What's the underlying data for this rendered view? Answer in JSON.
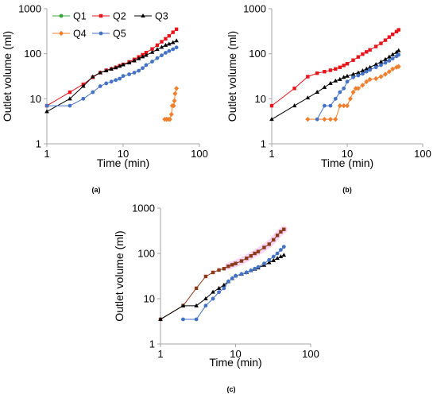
{
  "colors": {
    "Q1": "#3aa53a",
    "Q2": "#e8141b",
    "Q3": "#000000",
    "Q4": "#f07f2e",
    "Q5": "#4472c4",
    "axis": "#a6a6a6"
  },
  "chart_data": [
    {
      "type": "line",
      "panel_label": "(a)",
      "xlabel": "Time (min)",
      "ylabel": "Outlet volume (ml)",
      "xscale": "log",
      "yscale": "log",
      "xlim": [
        1,
        100
      ],
      "ylim": [
        1,
        1000
      ],
      "x_ticks": [
        "1",
        "10",
        "100"
      ],
      "y_ticks": [
        "1",
        "10",
        "100",
        "1000"
      ],
      "legend": "top-left",
      "legend_entries": [
        "Q1",
        "Q2",
        "Q3",
        "Q4",
        "Q5"
      ],
      "series": [
        {
          "name": "Q1",
          "marker": "circle",
          "points": []
        },
        {
          "name": "Q2",
          "marker": "square",
          "points": [
            [
              1,
              7
            ],
            [
              2,
              14
            ],
            [
              3,
              21
            ],
            [
              4,
              30
            ],
            [
              5,
              38
            ],
            [
              6,
              43
            ],
            [
              7,
              46
            ],
            [
              8,
              50
            ],
            [
              9,
              54
            ],
            [
              10,
              58
            ],
            [
              12,
              66
            ],
            [
              14,
              75
            ],
            [
              16,
              85
            ],
            [
              18,
              95
            ],
            [
              20,
              106
            ],
            [
              24,
              128
            ],
            [
              28,
              155
            ],
            [
              32,
              185
            ],
            [
              36,
              215
            ],
            [
              40,
              250
            ],
            [
              45,
              300
            ],
            [
              50,
              350
            ]
          ]
        },
        {
          "name": "Q3",
          "marker": "triangle",
          "points": [
            [
              1,
              5.2
            ],
            [
              2,
              10
            ],
            [
              3,
              19
            ],
            [
              4,
              31
            ],
            [
              5,
              38
            ],
            [
              6,
              42
            ],
            [
              7,
              46
            ],
            [
              8,
              49
            ],
            [
              9,
              53
            ],
            [
              10,
              57
            ],
            [
              12,
              63
            ],
            [
              14,
              70
            ],
            [
              16,
              78
            ],
            [
              18,
              86
            ],
            [
              20,
              93
            ],
            [
              24,
              108
            ],
            [
              28,
              125
            ],
            [
              32,
              140
            ],
            [
              36,
              155
            ],
            [
              40,
              165
            ],
            [
              45,
              178
            ],
            [
              50,
              195
            ]
          ]
        },
        {
          "name": "Q4",
          "marker": "diamond",
          "points": [
            [
              35,
              3.5
            ],
            [
              37,
              3.5
            ],
            [
              39,
              3.5
            ],
            [
              41,
              3.5
            ],
            [
              43,
              4.5
            ],
            [
              44,
              7
            ],
            [
              46,
              7
            ],
            [
              47,
              9
            ],
            [
              48,
              13
            ],
            [
              50,
              17
            ]
          ]
        },
        {
          "name": "Q5",
          "marker": "circle",
          "points": [
            [
              1,
              7
            ],
            [
              2,
              7
            ],
            [
              3,
              10
            ],
            [
              4,
              14
            ],
            [
              5,
              19
            ],
            [
              6,
              22
            ],
            [
              7,
              24
            ],
            [
              8,
              26
            ],
            [
              9,
              28
            ],
            [
              10,
              32
            ],
            [
              12,
              35
            ],
            [
              14,
              38
            ],
            [
              16,
              42
            ],
            [
              18,
              48
            ],
            [
              20,
              56
            ],
            [
              24,
              67
            ],
            [
              28,
              80
            ],
            [
              32,
              92
            ],
            [
              36,
              105
            ],
            [
              40,
              115
            ],
            [
              45,
              126
            ],
            [
              50,
              138
            ]
          ]
        }
      ]
    },
    {
      "type": "line",
      "panel_label": "(b)",
      "xlabel": "Time (min)",
      "ylabel": "Outlet volume (ml)",
      "xscale": "log",
      "yscale": "log",
      "xlim": [
        1,
        100
      ],
      "ylim": [
        1,
        1000
      ],
      "x_ticks": [
        "1",
        "10",
        "100"
      ],
      "y_ticks": [
        "1",
        "10",
        "100",
        "1000"
      ],
      "series": [
        {
          "name": "Q2",
          "marker": "square",
          "points": [
            [
              1,
              7
            ],
            [
              2,
              17
            ],
            [
              3,
              31
            ],
            [
              4,
              37
            ],
            [
              5,
              40
            ],
            [
              6,
              43
            ],
            [
              7,
              46
            ],
            [
              8,
              50
            ],
            [
              9,
              55
            ],
            [
              10,
              60
            ],
            [
              12,
              72
            ],
            [
              14,
              85
            ],
            [
              16,
              98
            ],
            [
              18,
              110
            ],
            [
              20,
              122
            ],
            [
              24,
              145
            ],
            [
              28,
              170
            ],
            [
              32,
              200
            ],
            [
              36,
              235
            ],
            [
              40,
              270
            ],
            [
              45,
              310
            ],
            [
              48,
              340
            ]
          ]
        },
        {
          "name": "Q3",
          "marker": "triangle",
          "points": [
            [
              1,
              3.5
            ],
            [
              2,
              7
            ],
            [
              3,
              10.5
            ],
            [
              4,
              14
            ],
            [
              5,
              18
            ],
            [
              6,
              22
            ],
            [
              7,
              25
            ],
            [
              8,
              27
            ],
            [
              9,
              30
            ],
            [
              10,
              32
            ],
            [
              12,
              35
            ],
            [
              14,
              38
            ],
            [
              16,
              42
            ],
            [
              18,
              46
            ],
            [
              20,
              50
            ],
            [
              24,
              58
            ],
            [
              28,
              66
            ],
            [
              32,
              75
            ],
            [
              36,
              85
            ],
            [
              40,
              96
            ],
            [
              45,
              108
            ],
            [
              48,
              118
            ]
          ]
        },
        {
          "name": "Q4",
          "marker": "diamond",
          "points": [
            [
              3,
              3.5
            ],
            [
              5,
              3.5
            ],
            [
              6,
              3.5
            ],
            [
              7,
              3.5
            ],
            [
              8,
              7
            ],
            [
              9,
              7
            ],
            [
              10,
              7
            ],
            [
              11,
              10
            ],
            [
              12,
              14
            ],
            [
              13,
              17
            ],
            [
              14,
              17
            ],
            [
              16,
              20
            ],
            [
              18,
              24
            ],
            [
              20,
              27
            ],
            [
              24,
              28
            ],
            [
              28,
              31
            ],
            [
              32,
              35
            ],
            [
              36,
              40
            ],
            [
              40,
              46
            ],
            [
              45,
              50
            ],
            [
              48,
              52
            ]
          ]
        },
        {
          "name": "Q5",
          "marker": "circle",
          "points": [
            [
              4,
              3.5
            ],
            [
              5,
              7
            ],
            [
              6,
              7
            ],
            [
              7,
              10
            ],
            [
              8,
              14
            ],
            [
              9,
              17
            ],
            [
              10,
              24
            ],
            [
              12,
              30
            ],
            [
              14,
              33
            ],
            [
              16,
              36
            ],
            [
              18,
              40
            ],
            [
              20,
              44
            ],
            [
              24,
              50
            ],
            [
              28,
              56
            ],
            [
              32,
              63
            ],
            [
              36,
              70
            ],
            [
              40,
              78
            ],
            [
              45,
              88
            ],
            [
              48,
              95
            ]
          ]
        }
      ]
    },
    {
      "type": "line",
      "panel_label": "(c)",
      "xlabel": "Time (min)",
      "ylabel": "Outlet volume (ml)",
      "xscale": "log",
      "yscale": "log",
      "xlim": [
        1,
        100
      ],
      "ylim": [
        1,
        1000
      ],
      "x_ticks": [
        "1",
        "10",
        "100"
      ],
      "y_ticks": [
        "1",
        "10",
        "100",
        "1000"
      ],
      "series": [
        {
          "name": "Q2",
          "marker": "square",
          "color": "#8b3a1a",
          "points": [
            [
              1,
              3.5
            ],
            [
              2,
              7
            ],
            [
              3,
              17
            ],
            [
              4,
              31
            ],
            [
              5,
              38
            ],
            [
              6,
              43
            ],
            [
              7,
              46
            ],
            [
              8,
              52
            ],
            [
              9,
              56
            ],
            [
              10,
              60
            ],
            [
              12,
              68
            ],
            [
              14,
              78
            ],
            [
              16,
              88
            ],
            [
              18,
              100
            ],
            [
              20,
              110
            ],
            [
              24,
              135
            ],
            [
              28,
              160
            ],
            [
              32,
              200
            ],
            [
              36,
              250
            ],
            [
              40,
              300
            ],
            [
              44,
              340
            ]
          ]
        },
        {
          "name": "Q3",
          "marker": "triangle",
          "points": [
            [
              1,
              3.5
            ],
            [
              2,
              7
            ],
            [
              3,
              7
            ],
            [
              4,
              10
            ],
            [
              5,
              14
            ],
            [
              6,
              17
            ],
            [
              7,
              20
            ],
            [
              8,
              24
            ],
            [
              9,
              28
            ],
            [
              10,
              32
            ],
            [
              12,
              35
            ],
            [
              14,
              38
            ],
            [
              16,
              42
            ],
            [
              18,
              45
            ],
            [
              20,
              48
            ],
            [
              24,
              55
            ],
            [
              28,
              63
            ],
            [
              32,
              70
            ],
            [
              36,
              78
            ],
            [
              40,
              85
            ],
            [
              44,
              92
            ]
          ]
        },
        {
          "name": "Q5",
          "marker": "circle",
          "points": [
            [
              2,
              3.5
            ],
            [
              3,
              3.5
            ],
            [
              4,
              7
            ],
            [
              5,
              10
            ],
            [
              6,
              14
            ],
            [
              7,
              17
            ],
            [
              8,
              24
            ],
            [
              9,
              28
            ],
            [
              10,
              32
            ],
            [
              12,
              35
            ],
            [
              14,
              38
            ],
            [
              16,
              42
            ],
            [
              18,
              46
            ],
            [
              20,
              50
            ],
            [
              24,
              60
            ],
            [
              28,
              72
            ],
            [
              32,
              85
            ],
            [
              36,
              100
            ],
            [
              40,
              120
            ],
            [
              44,
              140
            ]
          ]
        }
      ]
    }
  ]
}
